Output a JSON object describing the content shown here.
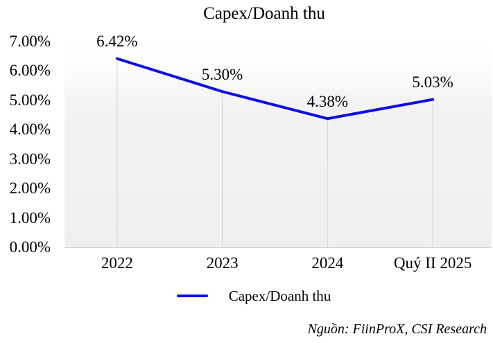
{
  "chart": {
    "title": "Capex/Doanh thu",
    "legend_label": "Capex/Doanh thu",
    "source": "Nguồn: FiinProX, CSI Research"
  },
  "chart_data": {
    "type": "line",
    "title": "Capex/Doanh thu",
    "categories": [
      "2022",
      "2023",
      "2024",
      "Quý II 2025"
    ],
    "series": [
      {
        "name": "Capex/Doanh thu",
        "values": [
          6.42,
          5.3,
          4.38,
          5.03
        ]
      }
    ],
    "point_labels": [
      "6.42%",
      "5.30%",
      "4.38%",
      "5.03%"
    ],
    "yticks": [
      "7.00%",
      "6.00%",
      "5.00%",
      "4.00%",
      "3.00%",
      "2.00%",
      "1.00%",
      "0.00%"
    ],
    "ylim": [
      0,
      7
    ],
    "xlabel": "",
    "ylabel": "",
    "legend_position": "bottom",
    "grid": "vertical-drop-lines-only",
    "colors": {
      "line": "#0e0ee8",
      "plot_bg_top": "#ffffff",
      "plot_bg_bottom": "#efefef",
      "drop_line": "#dadada",
      "axis_line": "#cfcfcf",
      "text": "#000000"
    }
  }
}
